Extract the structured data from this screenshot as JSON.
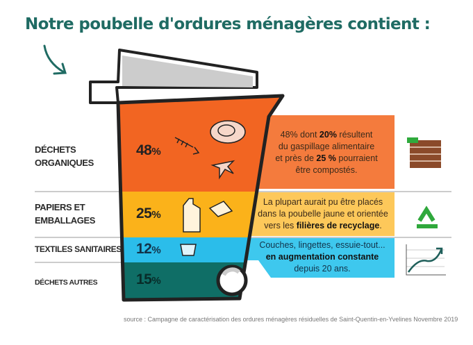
{
  "title": "Notre poubelle d'ordures ménagères contient :",
  "colors": {
    "organic": "#f26522",
    "paper": "#fbb21a",
    "textile": "#2bbdea",
    "other": "#0f6e66",
    "title": "#1f6b63"
  },
  "categories": [
    {
      "label_line1": "DÉCHETS",
      "label_line2": "ORGANIQUES",
      "value": "48",
      "unit": "%",
      "icon": "food-waste-icon",
      "desc": {
        "l1a": "48% dont ",
        "l1b": "20%",
        "l1c": " résultent",
        "l2": "du gaspillage alimentaire",
        "l3a": "et près de ",
        "l3b": "25 %",
        "l3c": " pourraient",
        "l4": "être compostés."
      },
      "side_icon": "compost-bin-icon"
    },
    {
      "label_line1": "PAPIERS ET",
      "label_line2": "EMBALLAGES",
      "value": "25",
      "unit": "%",
      "icon": "packaging-icon",
      "desc": {
        "l1": "La plupart aurait pu être placés",
        "l2": "dans la poubelle jaune et orientée",
        "l3a": "vers les ",
        "l3b": "filières de recyclage",
        "l3c": "."
      },
      "side_icon": "recycle-icon"
    },
    {
      "label_line1": "TEXTILES SANITAIRES",
      "value": "12",
      "unit": "%",
      "icon": "diaper-icon",
      "desc": {
        "l1": "Couches, lingettes, essuie-tout...",
        "l2": "en augmentation constante",
        "l3": "depuis 20 ans."
      },
      "side_icon": "rising-chart-icon"
    },
    {
      "label_line1": "DÉCHETS AUTRES",
      "value": "15",
      "unit": "%"
    }
  ],
  "source": "source : Campagne de caractérisation des ordures ménagères résiduelles de Saint-Quentin-en-Yvelines Novembre 2019"
}
